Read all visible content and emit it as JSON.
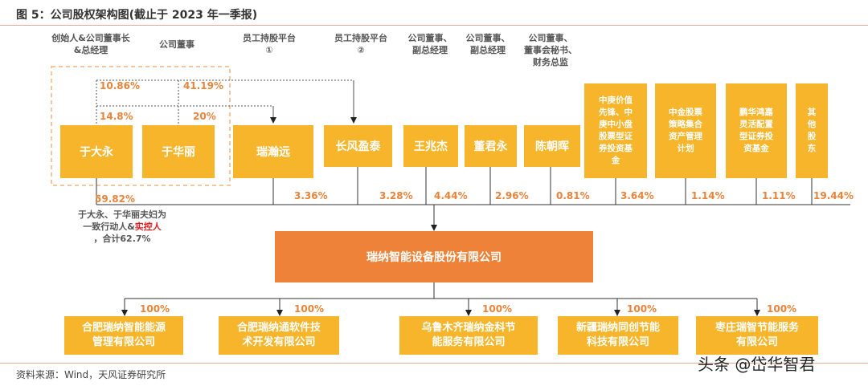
{
  "title": "图 5：公司股权架构图(截止于 2023 年一季报)",
  "roles": {
    "r1": [
      "创始人&公司董事长",
      "&总经理"
    ],
    "r2": [
      "公司董事"
    ],
    "r3": [
      "员工持股平台",
      "①"
    ],
    "r4": [
      "员工持股平台",
      "②"
    ],
    "r5": [
      "公司董事、",
      "副总经理"
    ],
    "r6": [
      "公司董事、",
      "副总经理"
    ],
    "r7": [
      "公司董事、",
      "董事会秘书、",
      "财务总监"
    ]
  },
  "shareholders": {
    "yudayong": "于大永",
    "yuhuali": "于华丽",
    "ruihanyuan": "瑞瀚远",
    "changfeng": "长风盈泰",
    "wangzhaojie": "王兆杰",
    "dongjunyong": "董君永",
    "chenchaohui": "陈朝晖",
    "fund1": [
      "中庚价值",
      "先锋、中",
      "庚中小盘",
      "股票型证",
      "券投资基",
      "金"
    ],
    "fund2": [
      "中金股票",
      "策略集合",
      "资产管理",
      "计划"
    ],
    "fund3": [
      "鹏华鸿嘉",
      "灵活配置",
      "型证券投",
      "资基金"
    ],
    "others": [
      "其",
      "他",
      "股",
      "东"
    ]
  },
  "inner_pcts": {
    "p10_86": "10.86%",
    "p41_19": "41.19%",
    "p14_8": "14.8%",
    "p20": "20%"
  },
  "holding_pcts": {
    "h59_82": "59.82%",
    "h3_36": "3.36%",
    "h3_28": "3.28%",
    "h4_44": "4.44%",
    "h2_96": "2.96%",
    "h0_81": "0.81%",
    "h3_64": "3.64%",
    "h1_14": "1.14%",
    "h1_11": "1.11%",
    "h19_44": "19.44%"
  },
  "note": {
    "line1": "于大永、于华丽夫妇为",
    "line2_pre": "一致行动人&",
    "line2_red": "实控人",
    "line3": "，合计62.7%"
  },
  "company": "瑞纳智能设备股份有限公司",
  "subsidiaries": [
    {
      "pct": "100%",
      "lines": [
        "合肥瑞纳智能能源",
        "管理有限公司"
      ]
    },
    {
      "pct": "100%",
      "lines": [
        "合肥瑞纳通软件技",
        "术开发有限公司"
      ]
    },
    {
      "pct": "100%",
      "lines": [
        "乌鲁木齐瑞纳金科节",
        "能服务有限公司"
      ]
    },
    {
      "pct": "100%",
      "lines": [
        "新疆瑞纳同创节能",
        "科技有限公司"
      ]
    },
    {
      "pct": "100%",
      "lines": [
        "枣庄瑞智节能服务",
        "有限公司"
      ]
    }
  ],
  "source": "资料来源：Wind，天风证券研究所",
  "watermark": "头条 @岱华智君",
  "colors": {
    "accent_orange": "#ee8238",
    "box_yellow": "#f6b52a",
    "pct_orange": "#e8833a",
    "note_red": "#e02020"
  }
}
